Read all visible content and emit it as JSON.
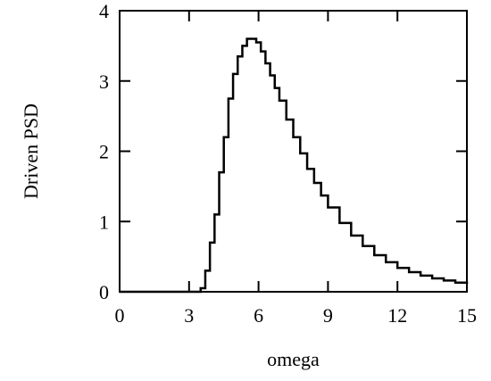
{
  "chart_data": {
    "type": "line",
    "title": "",
    "xlabel": "omega",
    "ylabel": "Driven PSD",
    "xlim": [
      0,
      15
    ],
    "ylim": [
      0,
      4
    ],
    "xticks": [
      "0",
      "3",
      "6",
      "9",
      "12",
      "15"
    ],
    "yticks": [
      "0",
      "1",
      "2",
      "3",
      "4"
    ],
    "grid": false,
    "line_color": "#000000",
    "series": [
      {
        "style": "step",
        "x": [
          0,
          3,
          3.3,
          3.5,
          3.7,
          3.9,
          4.1,
          4.3,
          4.5,
          4.7,
          4.9,
          5.1,
          5.3,
          5.5,
          5.7,
          5.9,
          6.1,
          6.3,
          6.5,
          6.7,
          6.9,
          7.2,
          7.5,
          7.8,
          8.1,
          8.4,
          8.7,
          9.0,
          9.5,
          10.0,
          10.5,
          11.0,
          11.5,
          12.0,
          12.5,
          13.0,
          13.5,
          14.0,
          14.5,
          15.0
        ],
        "y": [
          0,
          0,
          0,
          0.05,
          0.3,
          0.7,
          1.1,
          1.7,
          2.2,
          2.75,
          3.1,
          3.35,
          3.5,
          3.6,
          3.6,
          3.55,
          3.42,
          3.25,
          3.08,
          2.9,
          2.72,
          2.45,
          2.2,
          1.97,
          1.75,
          1.55,
          1.37,
          1.2,
          0.98,
          0.8,
          0.65,
          0.52,
          0.42,
          0.34,
          0.28,
          0.23,
          0.19,
          0.16,
          0.13,
          0.11
        ]
      }
    ]
  }
}
